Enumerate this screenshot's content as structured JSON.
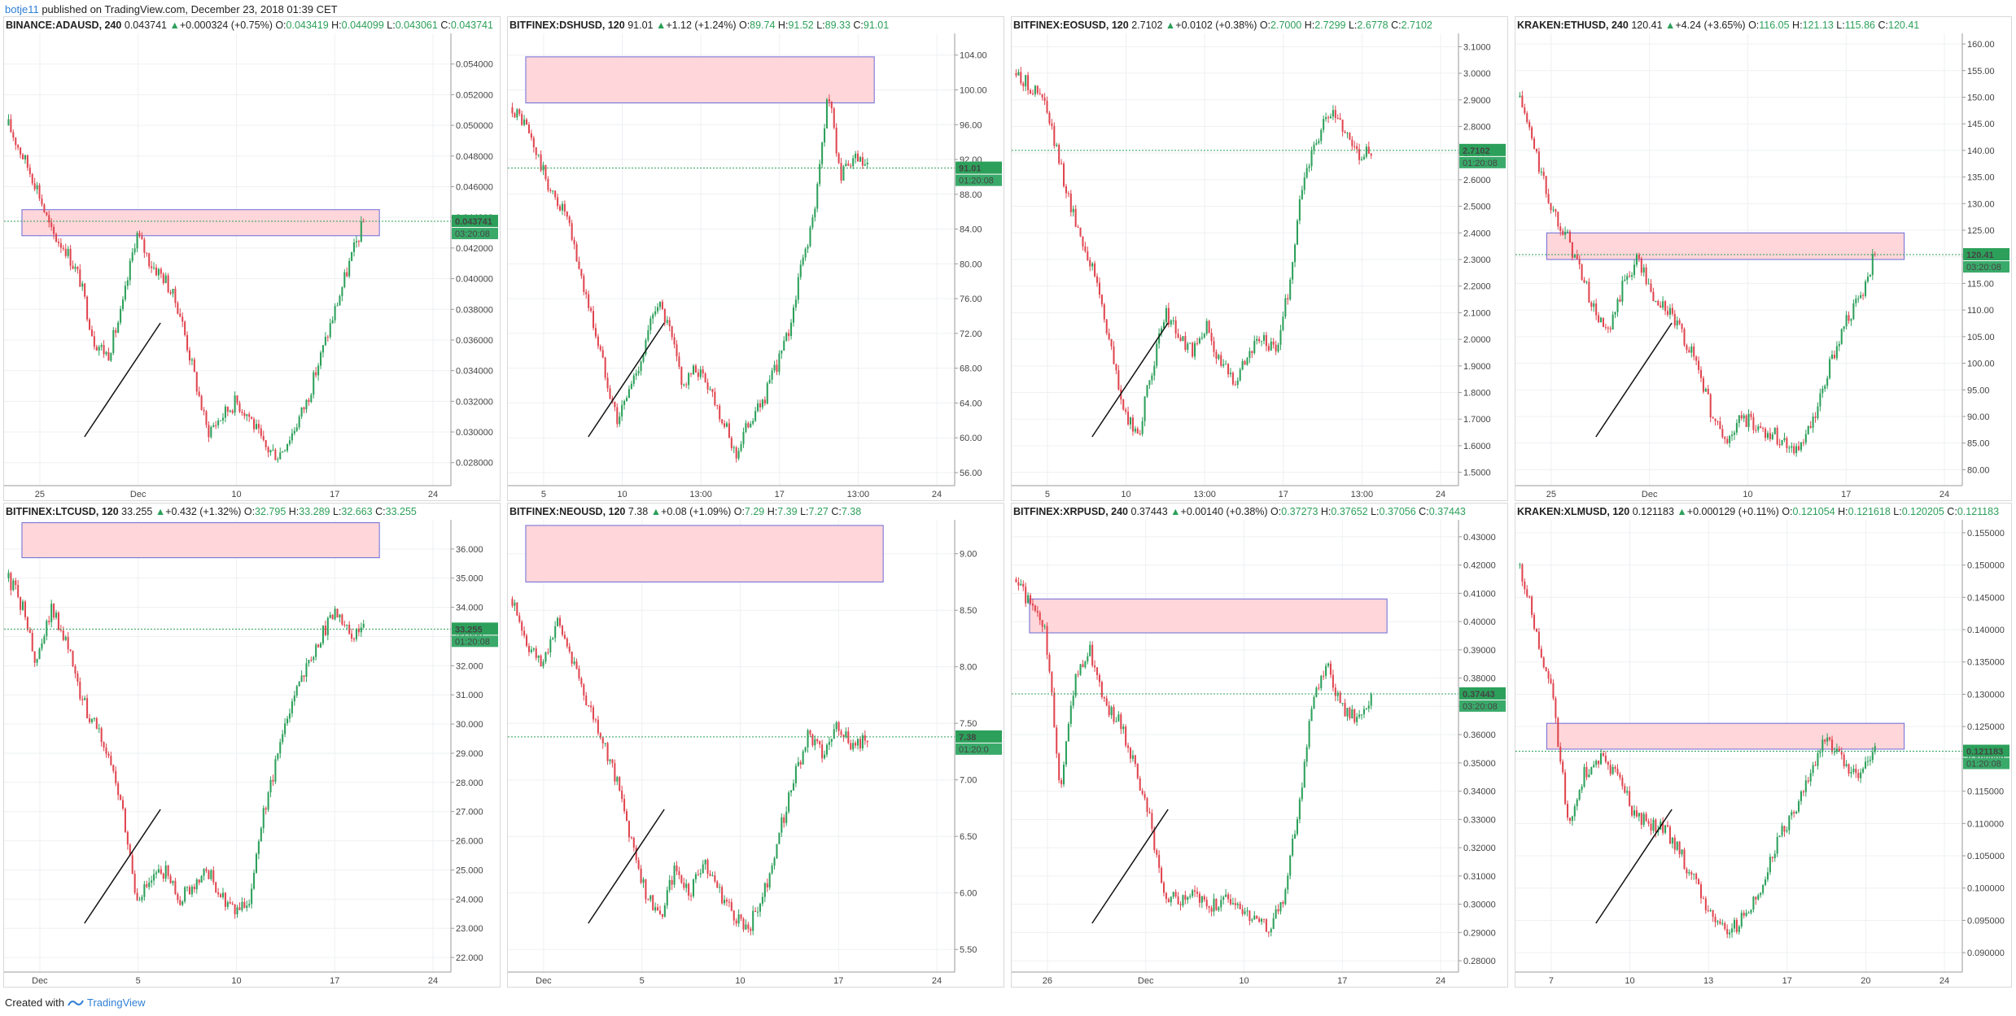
{
  "header": {
    "user": "botje11",
    "rest": "published on TradingView.com, December 23, 2018 01:39 CET"
  },
  "footer": {
    "created_with": "Created with",
    "brand": "TradingView"
  },
  "colors": {
    "up": "#2ca05a",
    "down": "#e0454f",
    "zone_fill": "#ffd6d9",
    "zone_stroke": "#6a6ad8",
    "price_line": "#2ca05a",
    "grid": "#eef0f3"
  },
  "panels": [
    {
      "symbol": "BINANCE:ADAUSD, 240",
      "last": "0.043741",
      "change": "+0.000324 (+0.75%)",
      "o": "0.043419",
      "h": "0.044099",
      "l": "0.043061",
      "c": "0.043741",
      "price_label": "0.043741",
      "timer_label": "03:20:08",
      "y_ticks": [
        "0.054000",
        "0.052000",
        "0.050000",
        "0.048000",
        "0.046000",
        "0.044000",
        "0.042000",
        "0.040000",
        "0.038000",
        "0.036000",
        "0.034000",
        "0.032000",
        "0.030000",
        "0.028000"
      ],
      "x_ticks": [
        "25",
        "Dec",
        "10",
        "17",
        "24"
      ]
    },
    {
      "symbol": "BITFINEX:DSHUSD, 120",
      "last": "91.01",
      "change": "+1.12 (+1.24%)",
      "o": "89.74",
      "h": "91.52",
      "l": "89.33",
      "c": "91.01",
      "price_label": "91.01",
      "timer_label": "01:20:08",
      "y_ticks": [
        "104.00",
        "100.00",
        "96.00",
        "92.00",
        "88.00",
        "84.00",
        "80.00",
        "76.00",
        "72.00",
        "68.00",
        "64.00",
        "60.00",
        "56.00"
      ],
      "x_ticks": [
        "5",
        "10",
        "13:00",
        "17",
        "13:00",
        "24"
      ]
    },
    {
      "symbol": "BITFINEX:EOSUSD, 120",
      "last": "2.7102",
      "change": "+0.0102 (+0.38%)",
      "o": "2.7000",
      "h": "2.7299",
      "l": "2.6778",
      "c": "2.7102",
      "price_label": "2.7102",
      "timer_label": "01:20:08",
      "y_ticks": [
        "3.1000",
        "3.0000",
        "2.9000",
        "2.8000",
        "2.7000",
        "2.6000",
        "2.5000",
        "2.4000",
        "2.3000",
        "2.2000",
        "2.1000",
        "2.0000",
        "1.9000",
        "1.8000",
        "1.7000",
        "1.6000",
        "1.5000"
      ],
      "x_ticks": [
        "5",
        "10",
        "13:00",
        "17",
        "13:00",
        "24"
      ]
    },
    {
      "symbol": "KRAKEN:ETHUSD, 240",
      "last": "120.41",
      "change": "+4.24 (+3.65%)",
      "o": "116.05",
      "h": "121.13",
      "l": "115.86",
      "c": "120.41",
      "price_label": "120.41",
      "timer_label": "03:20:08",
      "y_ticks": [
        "160.00",
        "155.00",
        "150.00",
        "145.00",
        "140.00",
        "135.00",
        "130.00",
        "125.00",
        "120.00",
        "115.00",
        "110.00",
        "105.00",
        "100.00",
        "95.00",
        "90.00",
        "85.00",
        "80.00"
      ],
      "x_ticks": [
        "25",
        "Dec",
        "10",
        "17",
        "24"
      ]
    },
    {
      "symbol": "BITFINEX:LTCUSD, 120",
      "last": "33.255",
      "change": "+0.432 (+1.32%)",
      "o": "32.795",
      "h": "33.289",
      "l": "32.663",
      "c": "33.255",
      "price_label": "33.255",
      "timer_label": "01:20:08",
      "y_ticks": [
        "36.000",
        "35.000",
        "34.000",
        "33.000",
        "32.000",
        "31.000",
        "30.000",
        "29.000",
        "28.000",
        "27.000",
        "26.000",
        "25.000",
        "24.000",
        "23.000",
        "22.000"
      ],
      "x_ticks": [
        "Dec",
        "5",
        "10",
        "17",
        "24"
      ]
    },
    {
      "symbol": "BITFINEX:NEOUSD, 120",
      "last": "7.38",
      "change": "+0.08 (+1.09%)",
      "o": "7.29",
      "h": "7.39",
      "l": "7.27",
      "c": "7.38",
      "price_label": "7.38",
      "timer_label": "01:20:0",
      "y_ticks": [
        "9.00",
        "8.50",
        "8.00",
        "7.50",
        "7.00",
        "6.50",
        "6.00",
        "5.50"
      ],
      "x_ticks": [
        "Dec",
        "5",
        "10",
        "17",
        "24"
      ]
    },
    {
      "symbol": "BITFINEX:XRPUSD, 240",
      "last": "0.37443",
      "change": "+0.00140 (+0.38%)",
      "o": "0.37273",
      "h": "0.37652",
      "l": "0.37056",
      "c": "0.37443",
      "price_label": "0.37443",
      "timer_label": "03:20:08",
      "y_ticks": [
        "0.43000",
        "0.42000",
        "0.41000",
        "0.40000",
        "0.39000",
        "0.38000",
        "0.37000",
        "0.36000",
        "0.35000",
        "0.34000",
        "0.33000",
        "0.32000",
        "0.31000",
        "0.30000",
        "0.29000",
        "0.28000"
      ],
      "x_ticks": [
        "26",
        "Dec",
        "10",
        "17",
        "24"
      ]
    },
    {
      "symbol": "KRAKEN:XLMUSD, 120",
      "last": "0.121183",
      "change": "+0.000129 (+0.11%)",
      "o": "0.121054",
      "h": "0.121618",
      "l": "0.120205",
      "c": "0.121183",
      "price_label": "0.121183",
      "timer_label": "01:20:08",
      "y_ticks": [
        "0.155000",
        "0.150000",
        "0.145000",
        "0.140000",
        "0.135000",
        "0.130000",
        "0.125000",
        "0.120000",
        "0.115000",
        "0.110000",
        "0.105000",
        "0.100000",
        "0.095000",
        "0.090000"
      ],
      "x_ticks": [
        "7",
        "10",
        "13",
        "17",
        "20",
        "24"
      ]
    }
  ],
  "chart_data": [
    {
      "type": "candlestick",
      "title": "BINANCE:ADAUSD, 240",
      "x": [
        "25",
        "Dec",
        "10",
        "17",
        "24"
      ],
      "close_path": [
        0.05,
        0.048,
        0.046,
        0.043,
        0.042,
        0.04,
        0.036,
        0.035,
        0.038,
        0.043,
        0.041,
        0.04,
        0.038,
        0.034,
        0.03,
        0.031,
        0.032,
        0.031,
        0.029,
        0.0285,
        0.03,
        0.032,
        0.035,
        0.038,
        0.041,
        0.0437
      ],
      "zone": [
        0.0428,
        0.0445
      ],
      "price": 0.043741,
      "ylim": [
        0.0265,
        0.056
      ]
    },
    {
      "type": "candlestick",
      "title": "BITFINEX:DSHUSD, 120",
      "x": [
        "5",
        "10",
        "13:00",
        "17",
        "13:00",
        "24"
      ],
      "close_path": [
        98,
        96,
        92,
        88,
        86,
        80,
        74,
        68,
        62,
        66,
        70,
        76,
        72,
        66,
        68,
        66,
        62,
        58,
        62,
        64,
        68,
        72,
        80,
        86,
        100,
        90,
        92,
        91
      ],
      "zone": [
        98.5,
        103.8
      ],
      "price": 91.01,
      "ylim": [
        54.5,
        106.5
      ]
    },
    {
      "type": "candlestick",
      "title": "BITFINEX:EOSUSD, 120",
      "x": [
        "5",
        "10",
        "13:00",
        "17",
        "13:00",
        "24"
      ],
      "close_path": [
        3.0,
        2.95,
        2.9,
        2.7,
        2.5,
        2.35,
        2.2,
        1.95,
        1.7,
        1.65,
        1.9,
        2.1,
        2.0,
        1.95,
        2.05,
        1.9,
        1.85,
        1.95,
        2.0,
        1.95,
        2.2,
        2.6,
        2.75,
        2.85,
        2.8,
        2.7,
        2.71
      ],
      "zone": [],
      "price": 2.7102,
      "ylim": [
        1.45,
        3.15
      ]
    },
    {
      "type": "candlestick",
      "title": "KRAKEN:ETHUSD, 240",
      "x": [
        "25",
        "Dec",
        "10",
        "17",
        "24"
      ],
      "close_path": [
        150,
        140,
        130,
        125,
        118,
        110,
        105,
        115,
        120,
        112,
        110,
        105,
        100,
        90,
        85,
        90,
        88,
        87,
        85,
        84,
        90,
        100,
        108,
        112,
        120.41
      ],
      "zone": [
        119.5,
        124.5
      ],
      "price": 120.41,
      "ylim": [
        77,
        162
      ]
    },
    {
      "type": "candlestick",
      "title": "BITFINEX:LTCUSD, 120",
      "x": [
        "Dec",
        "5",
        "10",
        "17",
        "24"
      ],
      "close_path": [
        35,
        34,
        32,
        34,
        33,
        31,
        30,
        29,
        27,
        24,
        24.5,
        25,
        24,
        24.5,
        25,
        24,
        23.5,
        24,
        27,
        29,
        31,
        32,
        33,
        34,
        33,
        33.255
      ],
      "zone": [
        35.7,
        36.9
      ],
      "price": 33.255,
      "ylim": [
        21.5,
        37.0
      ]
    },
    {
      "type": "candlestick",
      "title": "BITFINEX:NEOUSD, 120",
      "x": [
        "Dec",
        "5",
        "10",
        "17",
        "24"
      ],
      "close_path": [
        8.6,
        8.2,
        8.0,
        8.4,
        8.1,
        7.7,
        7.4,
        7.0,
        6.5,
        6.0,
        5.8,
        6.2,
        6.0,
        6.3,
        6.0,
        5.8,
        5.7,
        6.0,
        6.5,
        7.0,
        7.4,
        7.2,
        7.5,
        7.3,
        7.38
      ],
      "zone": [
        8.75,
        9.25
      ],
      "price": 7.38,
      "ylim": [
        5.3,
        9.3
      ]
    },
    {
      "type": "candlestick",
      "title": "BITFINEX:XRPUSD, 240",
      "x": [
        "26",
        "Dec",
        "10",
        "17",
        "24"
      ],
      "close_path": [
        0.415,
        0.405,
        0.395,
        0.34,
        0.38,
        0.39,
        0.37,
        0.365,
        0.35,
        0.33,
        0.305,
        0.3,
        0.305,
        0.298,
        0.302,
        0.3,
        0.295,
        0.292,
        0.3,
        0.33,
        0.37,
        0.385,
        0.37,
        0.365,
        0.37443
      ],
      "zone": [
        0.396,
        0.408
      ],
      "price": 0.37443,
      "ylim": [
        0.276,
        0.436
      ]
    },
    {
      "type": "candlestick",
      "title": "KRAKEN:XLMUSD, 120",
      "x": [
        "7",
        "10",
        "13",
        "17",
        "20",
        "24"
      ],
      "close_path": [
        0.15,
        0.14,
        0.13,
        0.11,
        0.118,
        0.12,
        0.118,
        0.112,
        0.11,
        0.109,
        0.105,
        0.1,
        0.095,
        0.093,
        0.096,
        0.1,
        0.108,
        0.112,
        0.118,
        0.123,
        0.12,
        0.117,
        0.121183
      ],
      "zone": [
        0.1215,
        0.1255
      ],
      "price": 0.121183,
      "ylim": [
        0.087,
        0.157
      ]
    }
  ]
}
